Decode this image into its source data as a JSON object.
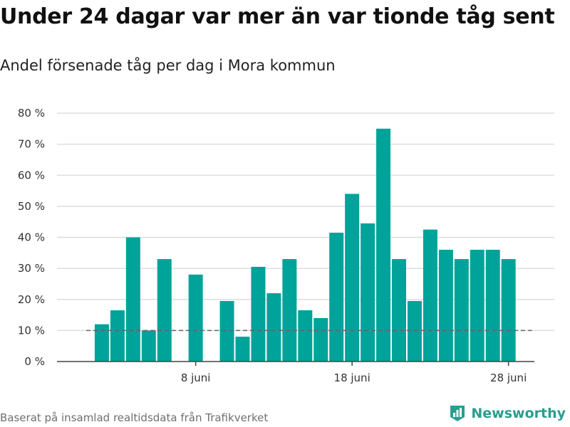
{
  "title": "Under 24 dagar var mer än var tionde tåg sent",
  "subtitle": "Andel försenade tåg per dag i Mora kommun",
  "source": "Baserat på insamlad realtidsdata från Trafikverket",
  "brand": {
    "name": "Newsworthy",
    "icon": "newsworthy-logo-icon"
  },
  "colors": {
    "bar": "#00a39a",
    "grid": "#dddddd",
    "threshold": "#666666",
    "axis": "#444444",
    "brand": "#2a9d8f"
  },
  "chart_data": {
    "type": "bar",
    "x": [
      "1 juni",
      "2 juni",
      "3 juni",
      "4 juni",
      "5 juni",
      "6 juni",
      "7 juni",
      "8 juni",
      "9 juni",
      "10 juni",
      "11 juni",
      "12 juni",
      "13 juni",
      "14 juni",
      "15 juni",
      "16 juni",
      "17 juni",
      "18 juni",
      "19 juni",
      "20 juni",
      "21 juni",
      "22 juni",
      "23 juni",
      "24 juni",
      "25 juni",
      "26 juni",
      "27 juni",
      "28 juni",
      "29 juni",
      "30 juni"
    ],
    "values": [
      null,
      12,
      16.5,
      40,
      10,
      33,
      null,
      28,
      null,
      19.5,
      8,
      30.5,
      22,
      33,
      16.5,
      14,
      41.5,
      54,
      44.5,
      75,
      33,
      19.5,
      42.5,
      36,
      33,
      36,
      36,
      33,
      null,
      null
    ],
    "threshold": 10,
    "ylim": [
      0,
      80
    ],
    "yticks": [
      0,
      10,
      20,
      30,
      40,
      50,
      60,
      70,
      80
    ],
    "ytick_labels": [
      "0 %",
      "10 %",
      "20 %",
      "30 %",
      "40 %",
      "50 %",
      "60 %",
      "70 %",
      "80 %"
    ],
    "xticks": [
      "8 juni",
      "18 juni",
      "28 juni"
    ],
    "xlabel": "",
    "ylabel": "",
    "grid": true,
    "legend": "none"
  }
}
